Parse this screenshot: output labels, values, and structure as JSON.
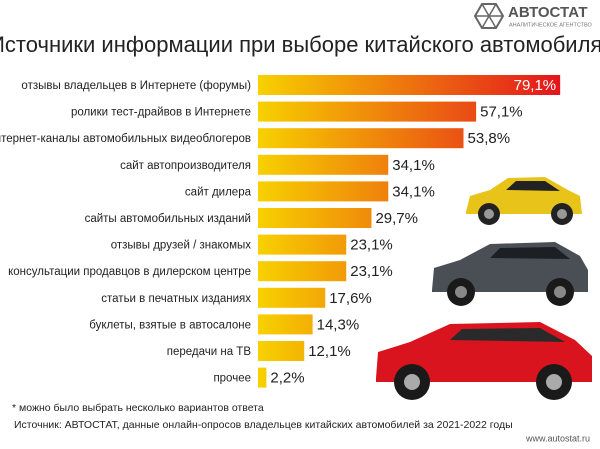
{
  "brand": {
    "name": "АВТОСТАТ",
    "tagline": "АНАЛИТИЧЕСКОЕ АГЕНТСТВО",
    "url": "www.autostat.ru"
  },
  "chart_data": {
    "type": "bar",
    "title": "Источники информации при выборе китайского автомобиля*",
    "categories": [
      "отзывы владельцев в Интернете (форумы)",
      "ролики тест-драйвов в Интернете",
      "интернет-каналы автомобильных видеоблогеров",
      "сайт автопроизводителя",
      "сайт дилера",
      "сайты автомобильных изданий",
      "отзывы друзей / знакомых",
      "консультации продавцов в дилерском центре",
      "статьи в печатных изданиях",
      "буклеты, взятые в автосалоне",
      "передачи на ТВ",
      "прочее"
    ],
    "values": [
      79.1,
      57.1,
      53.8,
      34.1,
      34.1,
      29.7,
      23.1,
      23.1,
      17.6,
      14.3,
      12.1,
      2.2
    ],
    "value_labels": [
      "79,1%",
      "57,1%",
      "53,8%",
      "34,1%",
      "34,1%",
      "29,7%",
      "23,1%",
      "23,1%",
      "17,6%",
      "14,3%",
      "12,1%",
      "2,2%"
    ],
    "colors": [
      "#f7d100",
      "#e4151d"
    ],
    "footnote": "* можно было выбрать несколько вариантов ответа",
    "source": "Источник: АВТОСТАТ, данные онлайн-опросов владельцев китайских автомобилей за 2021-2022 годы"
  }
}
